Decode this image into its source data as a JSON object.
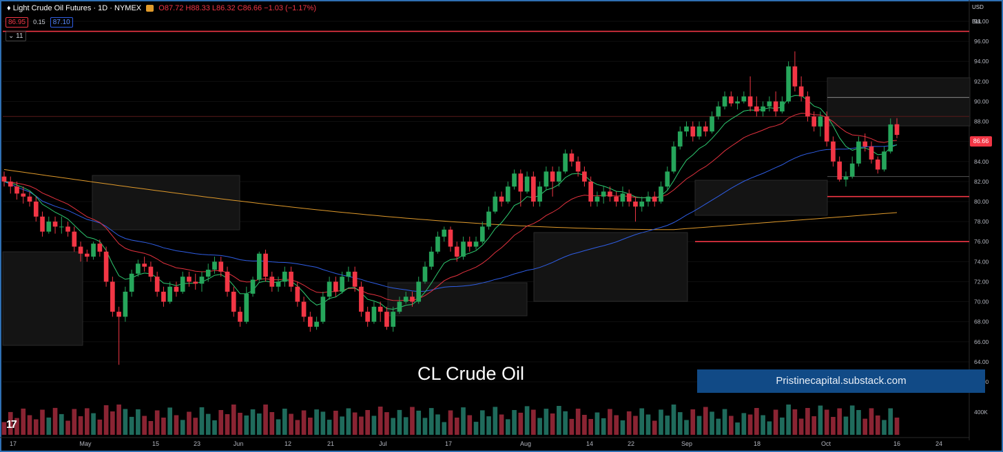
{
  "header": {
    "title": "Light Crude Oil Futures · 1D · NYMEX",
    "ohlc": "O87.72 H88.33 L86.32 C86.66 −1.03 (−1.17%)",
    "bid": "86.95",
    "spread": "0.15",
    "ask": "87.10",
    "indicator_badge": "11"
  },
  "top_right": {
    "currency": "USD",
    "unit": "BLL"
  },
  "last_price_label": "86.66",
  "overlay_title": "CL Crude Oil",
  "watermark": "Pristinecapital.substack.com",
  "colors": {
    "up": "#26a65b",
    "down": "#f23645",
    "ema_fast": "#2ecc71",
    "ema_mid": "#e5323f",
    "sma50": "#2f5ee6",
    "sma200": "#e09a2b",
    "hline": "#f23645"
  },
  "chart_data": {
    "type": "candlestick",
    "y_axis_ticks": [
      "98.00",
      "96.00",
      "94.00",
      "92.00",
      "90.00",
      "88.00",
      "86.00",
      "84.00",
      "82.00",
      "80.00",
      "78.00",
      "76.00",
      "74.00",
      "72.00",
      "70.00",
      "68.00",
      "66.00",
      "64.00",
      "62.00"
    ],
    "ylim": [
      61,
      99
    ],
    "volume_axis_label": "400K",
    "x_axis_ticks": [
      "17",
      "May",
      "15",
      "23",
      "Jun",
      "12",
      "21",
      "Jul",
      "17",
      "Aug",
      "14",
      "22",
      "Sep",
      "18",
      "Oct",
      "16",
      "24"
    ],
    "horizontal_levels": [
      97.0,
      80.5,
      76.0
    ],
    "candles": [
      [
        82.5,
        82.0,
        83.0,
        81.5
      ],
      [
        82.0,
        81.5,
        82.5,
        80.8
      ],
      [
        81.5,
        80.8,
        82.0,
        80.2
      ],
      [
        80.8,
        80.5,
        81.5,
        79.8
      ],
      [
        80.5,
        80.0,
        81.0,
        79.5
      ],
      [
        80.0,
        78.5,
        80.5,
        78.0
      ],
      [
        78.5,
        77.0,
        79.0,
        76.5
      ],
      [
        77.0,
        78.0,
        78.5,
        76.8
      ],
      [
        78.0,
        77.5,
        78.5,
        76.8
      ],
      [
        77.5,
        77.5,
        78.5,
        76.8
      ],
      [
        77.5,
        77.0,
        78.0,
        76.5
      ],
      [
        77.0,
        75.5,
        77.5,
        75.0
      ],
      [
        75.5,
        74.8,
        76.0,
        74.0
      ],
      [
        74.8,
        74.5,
        75.2,
        74.0
      ],
      [
        74.5,
        75.8,
        76.0,
        74.2
      ],
      [
        75.8,
        75.0,
        76.2,
        74.5
      ],
      [
        75.0,
        72.0,
        75.5,
        71.5
      ],
      [
        72.0,
        69.0,
        72.5,
        68.5
      ],
      [
        69.0,
        68.5,
        69.5,
        63.7
      ],
      [
        68.5,
        71.0,
        71.5,
        68.0
      ],
      [
        71.0,
        72.8,
        73.2,
        70.5
      ],
      [
        72.8,
        73.8,
        74.2,
        72.5
      ],
      [
        73.8,
        73.5,
        74.5,
        73.0
      ],
      [
        73.5,
        72.5,
        74.0,
        72.0
      ],
      [
        72.5,
        71.0,
        73.0,
        70.5
      ],
      [
        71.0,
        70.0,
        71.5,
        69.5
      ],
      [
        70.0,
        71.5,
        72.0,
        69.8
      ],
      [
        71.5,
        71.0,
        72.0,
        70.5
      ],
      [
        71.0,
        72.5,
        73.0,
        70.8
      ],
      [
        72.5,
        72.0,
        73.0,
        71.5
      ],
      [
        72.0,
        71.8,
        72.8,
        71.2
      ],
      [
        71.8,
        72.5,
        73.0,
        71.0
      ],
      [
        72.5,
        73.2,
        73.8,
        72.0
      ],
      [
        73.2,
        74.0,
        74.5,
        72.8
      ],
      [
        74.0,
        73.0,
        74.5,
        72.5
      ],
      [
        73.0,
        71.0,
        73.5,
        70.5
      ],
      [
        71.0,
        69.0,
        71.5,
        68.5
      ],
      [
        69.0,
        68.0,
        69.5,
        67.5
      ],
      [
        68.0,
        70.8,
        71.5,
        67.8
      ],
      [
        70.8,
        72.2,
        72.5,
        70.5
      ],
      [
        72.2,
        74.8,
        75.0,
        72.0
      ],
      [
        74.8,
        72.5,
        75.2,
        72.0
      ],
      [
        72.5,
        71.5,
        73.0,
        71.0
      ],
      [
        71.5,
        72.0,
        72.5,
        71.0
      ],
      [
        72.0,
        73.0,
        73.5,
        71.5
      ],
      [
        73.0,
        71.5,
        73.5,
        71.0
      ],
      [
        71.5,
        70.0,
        72.0,
        69.5
      ],
      [
        70.0,
        68.5,
        70.5,
        68.0
      ],
      [
        68.5,
        67.5,
        69.0,
        67.0
      ],
      [
        67.5,
        68.0,
        68.5,
        67.2
      ],
      [
        68.0,
        70.5,
        71.0,
        67.8
      ],
      [
        70.5,
        72.0,
        72.5,
        70.2
      ],
      [
        72.0,
        71.0,
        72.5,
        70.5
      ],
      [
        71.0,
        72.5,
        73.0,
        70.8
      ],
      [
        72.5,
        73.0,
        73.5,
        72.0
      ],
      [
        73.0,
        71.5,
        73.5,
        71.0
      ],
      [
        71.5,
        69.0,
        72.0,
        68.5
      ],
      [
        69.0,
        68.0,
        69.5,
        67.5
      ],
      [
        68.0,
        69.5,
        70.0,
        67.8
      ],
      [
        69.5,
        69.0,
        70.0,
        68.0
      ],
      [
        69.0,
        67.5,
        69.5,
        67.2
      ],
      [
        67.5,
        69.0,
        69.5,
        67.0
      ],
      [
        69.0,
        70.0,
        70.5,
        68.8
      ],
      [
        70.0,
        70.5,
        71.0,
        69.8
      ],
      [
        70.5,
        70.0,
        71.0,
        69.5
      ],
      [
        70.0,
        72.0,
        72.5,
        69.8
      ],
      [
        72.0,
        73.5,
        74.0,
        71.8
      ],
      [
        73.5,
        75.0,
        75.5,
        73.2
      ],
      [
        75.0,
        76.5,
        77.0,
        74.8
      ],
      [
        76.5,
        77.2,
        77.5,
        76.0
      ],
      [
        77.2,
        75.5,
        77.5,
        75.0
      ],
      [
        75.5,
        74.5,
        76.0,
        74.0
      ],
      [
        74.5,
        76.0,
        76.5,
        74.2
      ],
      [
        76.0,
        75.5,
        76.5,
        75.0
      ],
      [
        75.5,
        76.0,
        76.5,
        75.2
      ],
      [
        76.0,
        77.5,
        78.0,
        75.8
      ],
      [
        77.5,
        79.0,
        79.5,
        77.2
      ],
      [
        79.0,
        80.5,
        81.0,
        78.8
      ],
      [
        80.5,
        80.0,
        81.0,
        79.5
      ],
      [
        80.0,
        81.5,
        82.0,
        79.8
      ],
      [
        81.5,
        82.8,
        83.2,
        81.2
      ],
      [
        82.8,
        81.0,
        83.2,
        79.5
      ],
      [
        81.0,
        82.5,
        83.0,
        80.8
      ],
      [
        82.5,
        80.0,
        83.0,
        79.5
      ],
      [
        80.0,
        81.5,
        82.0,
        79.5
      ],
      [
        81.5,
        83.0,
        83.5,
        81.2
      ],
      [
        83.0,
        82.0,
        83.5,
        80.5
      ],
      [
        82.0,
        83.0,
        83.5,
        81.5
      ],
      [
        83.0,
        84.8,
        85.2,
        82.8
      ],
      [
        84.8,
        84.0,
        85.2,
        83.5
      ],
      [
        84.0,
        83.0,
        84.5,
        82.5
      ],
      [
        83.0,
        82.0,
        83.5,
        81.5
      ],
      [
        82.0,
        80.0,
        82.5,
        79.5
      ],
      [
        80.0,
        80.5,
        81.0,
        79.5
      ],
      [
        80.5,
        81.0,
        81.5,
        79.8
      ],
      [
        81.0,
        80.5,
        81.5,
        80.0
      ],
      [
        80.5,
        80.0,
        81.0,
        79.5
      ],
      [
        80.0,
        80.8,
        81.5,
        79.5
      ],
      [
        80.8,
        80.0,
        81.2,
        79.5
      ],
      [
        80.0,
        79.5,
        80.5,
        78.0
      ],
      [
        79.5,
        80.0,
        80.5,
        79.0
      ],
      [
        80.0,
        80.5,
        81.0,
        79.5
      ],
      [
        80.5,
        80.0,
        81.0,
        79.5
      ],
      [
        80.0,
        81.5,
        82.0,
        79.8
      ],
      [
        81.5,
        83.0,
        83.5,
        81.2
      ],
      [
        83.0,
        85.5,
        86.0,
        82.8
      ],
      [
        85.5,
        87.0,
        87.5,
        85.2
      ],
      [
        87.0,
        87.5,
        88.0,
        86.5
      ],
      [
        87.5,
        86.5,
        88.0,
        86.0
      ],
      [
        86.5,
        87.5,
        88.0,
        86.2
      ],
      [
        87.5,
        87.0,
        88.0,
        86.5
      ],
      [
        87.0,
        88.5,
        89.0,
        86.8
      ],
      [
        88.5,
        89.5,
        90.0,
        88.2
      ],
      [
        89.5,
        90.5,
        91.0,
        89.2
      ],
      [
        90.5,
        89.8,
        91.0,
        89.5
      ],
      [
        89.8,
        90.0,
        90.5,
        89.2
      ],
      [
        90.0,
        90.5,
        91.0,
        89.8
      ],
      [
        90.5,
        89.5,
        92.5,
        89.0
      ],
      [
        89.5,
        89.0,
        90.5,
        88.5
      ],
      [
        89.0,
        89.5,
        90.0,
        88.5
      ],
      [
        89.5,
        90.0,
        90.5,
        89.0
      ],
      [
        90.0,
        89.0,
        91.0,
        88.5
      ],
      [
        89.0,
        90.0,
        90.5,
        88.8
      ],
      [
        90.0,
        93.5,
        94.0,
        89.8
      ],
      [
        93.5,
        91.5,
        95.0,
        91.0
      ],
      [
        91.5,
        90.5,
        92.5,
        90.0
      ],
      [
        90.5,
        88.5,
        91.0,
        88.0
      ],
      [
        88.5,
        87.5,
        89.0,
        87.0
      ],
      [
        87.5,
        88.5,
        89.0,
        86.5
      ],
      [
        88.5,
        86.0,
        89.0,
        85.5
      ],
      [
        86.0,
        84.0,
        86.5,
        83.5
      ],
      [
        84.0,
        82.2,
        84.5,
        82.0
      ],
      [
        82.2,
        82.5,
        83.0,
        81.5
      ],
      [
        82.5,
        83.8,
        84.5,
        82.3
      ],
      [
        83.8,
        86.0,
        86.5,
        83.5
      ],
      [
        86.0,
        85.5,
        86.8,
        85.0
      ],
      [
        85.5,
        84.2,
        86.0,
        83.8
      ],
      [
        84.2,
        83.2,
        84.5,
        82.8
      ],
      [
        83.2,
        85.0,
        85.5,
        83.0
      ],
      [
        85.0,
        87.7,
        88.3,
        84.8
      ],
      [
        87.72,
        86.66,
        88.33,
        86.32
      ]
    ]
  }
}
